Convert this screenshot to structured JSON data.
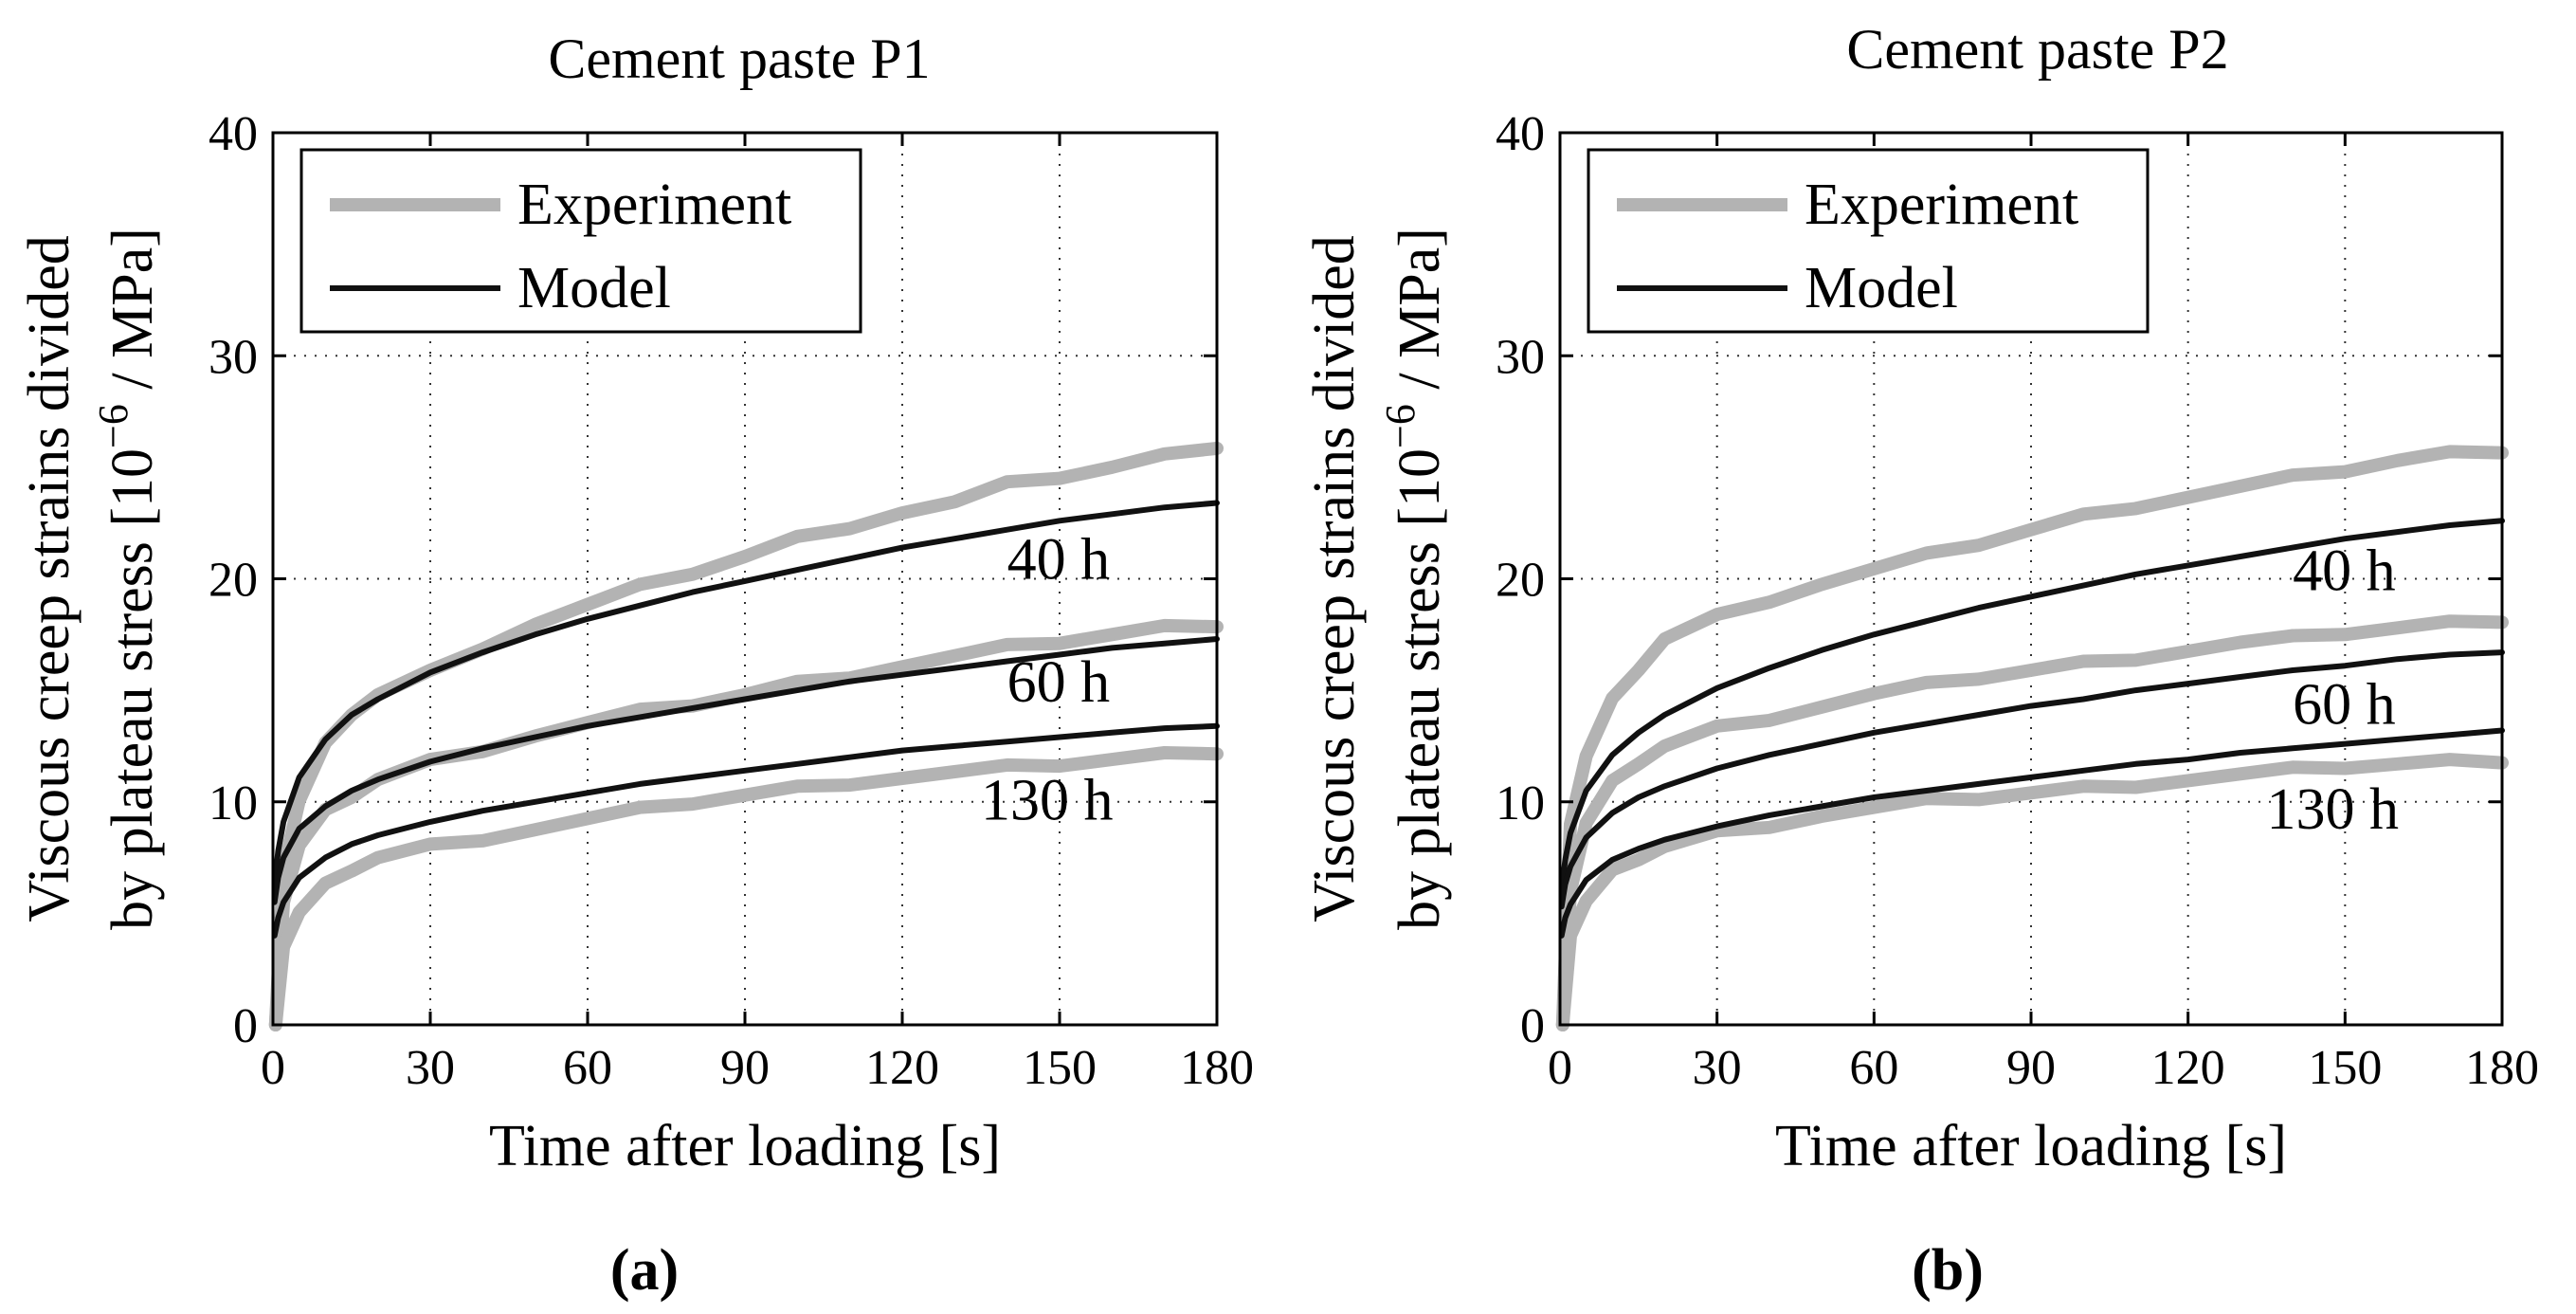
{
  "colors": {
    "experiment": "#b3b3b3",
    "model": "#111111",
    "axis": "#000000",
    "grid": "#333333"
  },
  "chart_data": [
    {
      "type": "line",
      "panel_label": "(a)",
      "title": "Cement paste P1",
      "xlabel": "Time after loading [s]",
      "ylabel_line1": "Viscous creep strains divided",
      "ylabel_line2": "by plateau stress [10^-6 / MPa]",
      "xlim": [
        0,
        180
      ],
      "ylim": [
        0,
        40
      ],
      "xticks": [
        "0",
        "30",
        "60",
        "90",
        "120",
        "150",
        "180"
      ],
      "yticks": [
        "0",
        "10",
        "20",
        "30",
        "40"
      ],
      "grid": true,
      "legend": {
        "position": "top-left",
        "entries": [
          "Experiment",
          "Model"
        ]
      },
      "annotations": [
        {
          "text": "40 h",
          "x": 140,
          "y": 20
        },
        {
          "text": "60 h",
          "x": 140,
          "y": 14.5
        },
        {
          "text": "130 h",
          "x": 135,
          "y": 9.2
        }
      ],
      "series": [
        {
          "name": "Experiment 40 h",
          "kind": "experiment",
          "x": [
            0.5,
            2,
            5,
            10,
            15,
            20,
            30,
            40,
            50,
            60,
            70,
            80,
            90,
            100,
            110,
            120,
            130,
            140,
            150,
            160,
            170,
            180
          ],
          "y": [
            0,
            7,
            10,
            12.5,
            14,
            14.8,
            15.8,
            17,
            18,
            18.8,
            19.6,
            20.3,
            21,
            21.8,
            22.4,
            23,
            23.4,
            24.2,
            24.6,
            25,
            25.5,
            26
          ]
        },
        {
          "name": "Model 40 h",
          "kind": "model",
          "x": [
            0.3,
            1,
            2,
            5,
            10,
            15,
            20,
            30,
            40,
            50,
            60,
            70,
            80,
            90,
            100,
            110,
            120,
            130,
            140,
            150,
            160,
            170,
            180
          ],
          "y": [
            6.3,
            7.8,
            9.1,
            11.1,
            12.8,
            13.9,
            14.6,
            15.8,
            16.7,
            17.5,
            18.2,
            18.8,
            19.4,
            19.9,
            20.4,
            20.9,
            21.4,
            21.8,
            22.2,
            22.6,
            22.9,
            23.2,
            23.4
          ]
        },
        {
          "name": "Experiment 60 h",
          "kind": "experiment",
          "x": [
            0.5,
            2,
            5,
            10,
            15,
            20,
            30,
            40,
            50,
            60,
            70,
            80,
            90,
            100,
            110,
            120,
            130,
            140,
            150,
            160,
            170,
            180
          ],
          "y": [
            0,
            5.5,
            8,
            9.5,
            10.3,
            11,
            11.8,
            12.4,
            13,
            13.5,
            14,
            14.4,
            14.8,
            15.3,
            15.7,
            16.1,
            16.5,
            16.9,
            17.2,
            17.5,
            17.8,
            18
          ]
        },
        {
          "name": "Model 60 h",
          "kind": "model",
          "x": [
            0.3,
            1,
            2,
            5,
            10,
            15,
            20,
            30,
            40,
            50,
            60,
            70,
            80,
            90,
            100,
            110,
            120,
            130,
            140,
            150,
            160,
            170,
            180
          ],
          "y": [
            5.5,
            6.6,
            7.5,
            8.8,
            9.8,
            10.5,
            11,
            11.8,
            12.4,
            12.9,
            13.4,
            13.8,
            14.2,
            14.6,
            15,
            15.4,
            15.7,
            16,
            16.3,
            16.6,
            16.9,
            17.1,
            17.3
          ]
        },
        {
          "name": "Experiment 130 h",
          "kind": "experiment",
          "x": [
            0.5,
            2,
            5,
            10,
            15,
            20,
            30,
            40,
            50,
            60,
            70,
            80,
            90,
            100,
            110,
            120,
            130,
            140,
            150,
            160,
            170,
            180
          ],
          "y": [
            0,
            3.5,
            5,
            6.2,
            7,
            7.5,
            8,
            8.4,
            8.8,
            9.2,
            9.6,
            10,
            10.3,
            10.6,
            10.9,
            11.1,
            11.3,
            11.5,
            11.7,
            11.9,
            12.1,
            12.3
          ]
        },
        {
          "name": "Model 130 h",
          "kind": "model",
          "x": [
            0.3,
            1,
            2,
            5,
            10,
            15,
            20,
            30,
            40,
            50,
            60,
            70,
            80,
            90,
            100,
            110,
            120,
            130,
            140,
            150,
            160,
            170,
            180
          ],
          "y": [
            4,
            4.8,
            5.5,
            6.6,
            7.5,
            8.1,
            8.5,
            9.1,
            9.6,
            10,
            10.4,
            10.8,
            11.1,
            11.4,
            11.7,
            12,
            12.3,
            12.5,
            12.7,
            12.9,
            13.1,
            13.3,
            13.4
          ]
        }
      ]
    },
    {
      "type": "line",
      "panel_label": "(b)",
      "title": "Cement paste P2",
      "xlabel": "Time after loading [s]",
      "ylabel_line1": "Viscous creep strains divided",
      "ylabel_line2": "by plateau stress [10^-6 / MPa]",
      "xlim": [
        0,
        180
      ],
      "ylim": [
        0,
        40
      ],
      "xticks": [
        "0",
        "30",
        "60",
        "90",
        "120",
        "150",
        "180"
      ],
      "yticks": [
        "0",
        "10",
        "20",
        "30",
        "40"
      ],
      "grid": true,
      "legend": {
        "position": "top-left",
        "entries": [
          "Experiment",
          "Model"
        ]
      },
      "annotations": [
        {
          "text": "40 h",
          "x": 140,
          "y": 19.5
        },
        {
          "text": "60 h",
          "x": 140,
          "y": 13.5
        },
        {
          "text": "130 h",
          "x": 135,
          "y": 8.8
        }
      ],
      "series": [
        {
          "name": "Experiment 40 h",
          "kind": "experiment",
          "x": [
            0.5,
            2,
            5,
            10,
            15,
            20,
            30,
            40,
            50,
            60,
            70,
            80,
            90,
            100,
            110,
            120,
            130,
            140,
            150,
            160,
            170,
            180
          ],
          "y": [
            0,
            9,
            12,
            14.5,
            16,
            17.3,
            18.3,
            19.1,
            19.8,
            20.4,
            21,
            21.6,
            22.2,
            22.8,
            23.3,
            23.7,
            24.1,
            24.5,
            24.9,
            25.3,
            25.6,
            25.8
          ]
        },
        {
          "name": "Model 40 h",
          "kind": "model",
          "x": [
            0.3,
            1,
            2,
            5,
            10,
            15,
            20,
            30,
            40,
            50,
            60,
            70,
            80,
            90,
            100,
            110,
            120,
            130,
            140,
            150,
            160,
            170,
            180
          ],
          "y": [
            6,
            7.4,
            8.6,
            10.5,
            12.1,
            13.1,
            13.9,
            15.1,
            16,
            16.8,
            17.5,
            18.1,
            18.7,
            19.2,
            19.7,
            20.2,
            20.6,
            21,
            21.4,
            21.8,
            22.1,
            22.4,
            22.6
          ]
        },
        {
          "name": "Experiment 60 h",
          "kind": "experiment",
          "x": [
            0.5,
            2,
            5,
            10,
            15,
            20,
            30,
            40,
            50,
            60,
            70,
            80,
            90,
            100,
            110,
            120,
            130,
            140,
            150,
            160,
            170,
            180
          ],
          "y": [
            0,
            6,
            9,
            10.8,
            11.8,
            12.5,
            13.3,
            13.8,
            14.3,
            14.8,
            15.2,
            15.6,
            15.9,
            16.2,
            16.5,
            16.8,
            17.1,
            17.3,
            17.6,
            17.8,
            18,
            18.2
          ]
        },
        {
          "name": "Model 60 h",
          "kind": "model",
          "x": [
            0.3,
            1,
            2,
            5,
            10,
            15,
            20,
            30,
            40,
            50,
            60,
            70,
            80,
            90,
            100,
            110,
            120,
            130,
            140,
            150,
            160,
            170,
            180
          ],
          "y": [
            5.3,
            6.3,
            7.1,
            8.4,
            9.5,
            10.2,
            10.7,
            11.5,
            12.1,
            12.6,
            13.1,
            13.5,
            13.9,
            14.3,
            14.6,
            15,
            15.3,
            15.6,
            15.9,
            16.1,
            16.4,
            16.6,
            16.7
          ]
        },
        {
          "name": "Experiment 130 h",
          "kind": "experiment",
          "x": [
            0.5,
            2,
            5,
            10,
            15,
            20,
            30,
            40,
            50,
            60,
            70,
            80,
            90,
            100,
            110,
            120,
            130,
            140,
            150,
            160,
            170,
            180
          ],
          "y": [
            0,
            4,
            5.5,
            6.8,
            7.5,
            8,
            8.6,
            9,
            9.4,
            9.7,
            10,
            10.2,
            10.4,
            10.6,
            10.8,
            11,
            11.2,
            11.4,
            11.6,
            11.7,
            11.8,
            11.9
          ]
        },
        {
          "name": "Model 130 h",
          "kind": "model",
          "x": [
            0.3,
            1,
            2,
            5,
            10,
            15,
            20,
            30,
            40,
            50,
            60,
            70,
            80,
            90,
            100,
            110,
            120,
            130,
            140,
            150,
            160,
            170,
            180
          ],
          "y": [
            4,
            4.8,
            5.4,
            6.5,
            7.4,
            7.9,
            8.3,
            8.9,
            9.4,
            9.8,
            10.2,
            10.5,
            10.8,
            11.1,
            11.4,
            11.7,
            11.9,
            12.2,
            12.4,
            12.6,
            12.8,
            13,
            13.2
          ]
        }
      ]
    }
  ]
}
